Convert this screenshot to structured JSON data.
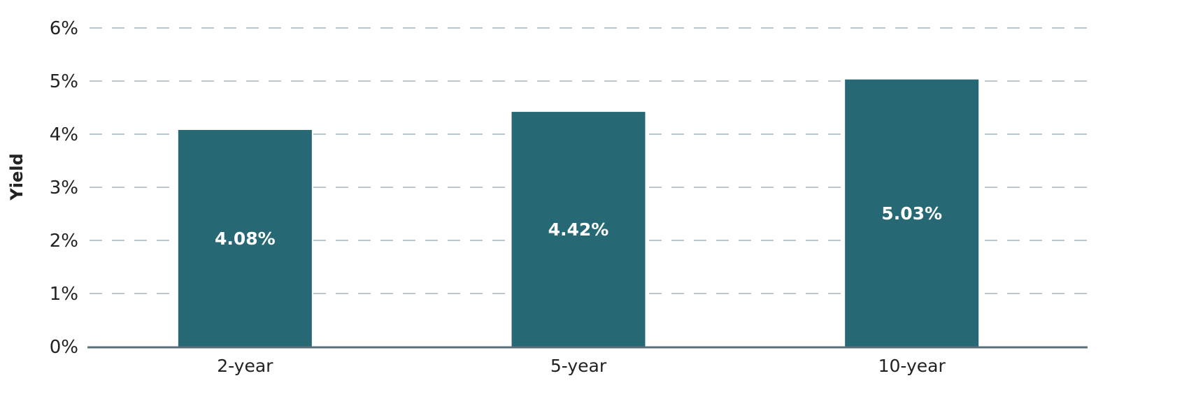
{
  "chart_data": {
    "type": "bar",
    "title": "",
    "xlabel": "",
    "ylabel": "Yield",
    "ylim": [
      0,
      6
    ],
    "yticks": [
      "0%",
      "1%",
      "2%",
      "3%",
      "4%",
      "5%",
      "6%"
    ],
    "categories": [
      "2-year",
      "5-year",
      "10-year"
    ],
    "values": [
      4.08,
      4.42,
      5.03
    ],
    "data_labels": [
      "4.08%",
      "4.42%",
      "5.03%"
    ],
    "grid": true,
    "grid_style": "dashed",
    "colors": {
      "bar": "#266874",
      "grid": "#a6b3bd",
      "axis": "#5a6e78"
    }
  }
}
